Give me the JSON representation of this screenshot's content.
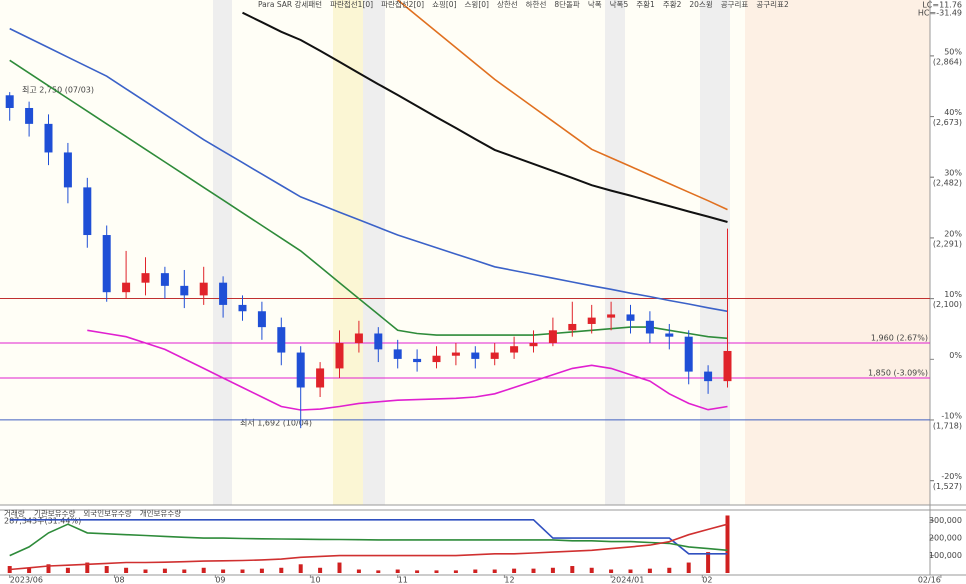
{
  "chart_data": [
    {
      "type": "candlestick",
      "legend": [
        "Para SAR 강세패턴",
        "파란접선1[0]",
        "파란접선2[0]",
        "쇼핑[0]",
        "스윙[0]",
        "상한선",
        "하한선",
        "8단돌파",
        "낙폭",
        "낙폭5",
        "주황1",
        "주황2",
        "20스윙",
        "공구리표",
        "공구리표2"
      ],
      "annotations": {
        "high": "최고 2,750 (07/03)",
        "low": "최저 1,692 (10/04)",
        "lc": "LC=11.76",
        "hc": "HC=-31.49"
      },
      "categories": [
        null,
        null,
        null,
        null,
        null,
        null,
        null,
        null,
        null,
        null,
        null,
        null,
        null,
        null,
        null,
        null,
        null,
        null,
        null,
        null,
        null,
        null,
        null,
        null,
        null,
        null,
        null,
        null,
        null,
        null,
        null,
        null,
        null,
        null,
        null,
        null,
        null,
        null
      ],
      "open": [
        2740,
        2700,
        2650,
        2560,
        2450,
        2300,
        2120,
        2150,
        2180,
        2140,
        2110,
        2150,
        2080,
        2060,
        2010,
        1930,
        1820,
        1880,
        1960,
        1990,
        1940,
        1910,
        1900,
        1920,
        1930,
        1910,
        1930,
        1950,
        1960,
        2000,
        2020,
        2040,
        2050,
        2030,
        1990,
        1980,
        1870,
        1840
      ],
      "high": [
        2750,
        2720,
        2680,
        2590,
        2480,
        2330,
        2250,
        2230,
        2200,
        2190,
        2200,
        2170,
        2110,
        2090,
        2040,
        1950,
        1900,
        2000,
        2030,
        2010,
        1970,
        1940,
        1950,
        1960,
        1950,
        1960,
        1980,
        2000,
        2040,
        2090,
        2080,
        2090,
        2080,
        2060,
        2020,
        2000,
        1890,
        2320
      ],
      "low": [
        2660,
        2610,
        2520,
        2400,
        2260,
        2090,
        2100,
        2110,
        2100,
        2070,
        2080,
        2040,
        2030,
        1970,
        1890,
        1692,
        1790,
        1850,
        1930,
        1900,
        1880,
        1870,
        1880,
        1890,
        1880,
        1890,
        1910,
        1930,
        1950,
        1980,
        1990,
        2000,
        1990,
        1960,
        1940,
        1830,
        1800,
        1820
      ],
      "close": [
        2700,
        2650,
        2560,
        2450,
        2300,
        2120,
        2150,
        2180,
        2140,
        2110,
        2150,
        2080,
        2060,
        2010,
        1930,
        1820,
        1880,
        1960,
        1990,
        1940,
        1910,
        1900,
        1920,
        1930,
        1910,
        1930,
        1950,
        1960,
        2000,
        2020,
        2040,
        2050,
        2030,
        1990,
        1980,
        1870,
        1840,
        1935
      ],
      "up_color": "#e0232a",
      "down_color": "#1f4fd6",
      "series": [
        {
          "color": "#111111",
          "values": [
            null,
            null,
            null,
            null,
            null,
            null,
            null,
            null,
            null,
            null,
            null,
            null,
            3000,
            2970,
            2940,
            2914,
            2880,
            2845,
            2810,
            2775,
            2741,
            2706,
            2671,
            2637,
            2602,
            2568,
            2546,
            2524,
            2502,
            2480,
            2457,
            2440,
            2424,
            2407,
            2391,
            2374,
            2358,
            2341
          ]
        },
        {
          "color": "#3b62c8",
          "values": [
            2950,
            2920,
            2890,
            2860,
            2830,
            2800,
            2760,
            2720,
            2680,
            2640,
            2600,
            2564,
            2528,
            2492,
            2456,
            2420,
            2396,
            2372,
            2348,
            2324,
            2300,
            2280,
            2260,
            2240,
            2220,
            2200,
            2188,
            2176,
            2164,
            2152,
            2140,
            2129,
            2117,
            2106,
            2094,
            2083,
            2071,
            2060
          ]
        },
        {
          "color": "#2e8b3a",
          "values": [
            2850,
            2810,
            2770,
            2730,
            2690,
            2650,
            2610,
            2570,
            2530,
            2490,
            2450,
            2410,
            2370,
            2330,
            2290,
            2250,
            2200,
            2150,
            2100,
            2050,
            2000,
            1990,
            1985,
            1985,
            1985,
            1985,
            1985,
            1985,
            1990,
            1995,
            2000,
            2005,
            2010,
            2010,
            2000,
            1990,
            1980,
            1975
          ]
        },
        {
          "color": "#e07020",
          "values": [
            null,
            null,
            null,
            null,
            null,
            null,
            null,
            null,
            null,
            null,
            null,
            null,
            null,
            null,
            null,
            null,
            null,
            null,
            null,
            null,
            3040,
            2990,
            2940,
            2890,
            2840,
            2790,
            2746,
            2702,
            2658,
            2614,
            2570,
            2543,
            2516,
            2489,
            2462,
            2435,
            2408,
            2380
          ]
        },
        {
          "color": "#e020d0",
          "values": [
            null,
            null,
            null,
            null,
            2000,
            1990,
            1980,
            1960,
            1940,
            1910,
            1880,
            1850,
            1820,
            1790,
            1760,
            1749,
            1752,
            1760,
            1770,
            1775,
            1780,
            1782,
            1784,
            1786,
            1790,
            1800,
            1820,
            1840,
            1860,
            1880,
            1890,
            1880,
            1860,
            1840,
            1800,
            1770,
            1750,
            1760
          ]
        }
      ],
      "hlines": [
        {
          "value": 1960,
          "label": "1,960 (2.67%)",
          "color": "#e020d0"
        },
        {
          "value": 1850,
          "label": "1,850 (-3.09%)",
          "color": "#e020d0"
        },
        {
          "value": 2100,
          "color": "#c03030"
        },
        {
          "value": 1718,
          "color": "#4060c0"
        }
      ],
      "ylim": [
        1450,
        3040
      ],
      "yticks": [
        {
          "value": 2864,
          "label": "(2,864)"
        },
        {
          "value": 2673,
          "label": "(2,673)"
        },
        {
          "value": 2482,
          "label": "(2,482)"
        },
        {
          "value": 2291,
          "label": "(2,291)"
        },
        {
          "value": 2100,
          "label": "(2,100)"
        },
        {
          "value": 1718,
          "label": "(1,718)"
        },
        {
          "value": 1527,
          "label": "(1,527)"
        }
      ],
      "y2lim": [
        -24.0,
        59.2
      ],
      "y2ticks": [
        {
          "value": 50,
          "label": "50%"
        },
        {
          "value": 40,
          "label": "40%"
        },
        {
          "value": 30,
          "label": "30%"
        },
        {
          "value": 20,
          "label": "20%"
        },
        {
          "value": 10,
          "label": "10%"
        },
        {
          "value": 0,
          "label": "0%"
        },
        {
          "value": -10,
          "label": "-10%"
        },
        {
          "value": -20,
          "label": "-20%"
        }
      ]
    },
    {
      "type": "bar",
      "name": "거래량",
      "annotation": "287,343주(31.44%)",
      "categories": [
        null,
        null,
        null,
        null,
        null,
        null,
        null,
        null,
        null,
        null,
        null,
        null,
        null,
        null,
        null,
        null,
        null,
        null,
        null,
        null,
        null,
        null,
        null,
        null,
        null,
        null,
        null,
        null,
        null,
        null,
        null,
        null,
        null,
        null,
        null,
        null,
        null,
        null
      ],
      "values": [
        40000,
        30000,
        50000,
        30000,
        60000,
        40000,
        30000,
        20000,
        25000,
        20000,
        30000,
        20000,
        20000,
        25000,
        30000,
        50000,
        30000,
        60000,
        20000,
        15000,
        20000,
        15000,
        15000,
        15000,
        20000,
        20000,
        25000,
        25000,
        30000,
        40000,
        30000,
        20000,
        20000,
        25000,
        30000,
        60000,
        120000,
        330000
      ],
      "color": "#d02020",
      "series": [
        {
          "name": "기관보유수량",
          "color": "#3050c0",
          "values": [
            305000,
            305000,
            305000,
            305000,
            305000,
            305000,
            305000,
            305000,
            305000,
            305000,
            305000,
            305000,
            305000,
            305000,
            305000,
            305000,
            305000,
            305000,
            305000,
            305000,
            305000,
            305000,
            305000,
            305000,
            305000,
            305000,
            305000,
            305000,
            200000,
            200000,
            200000,
            200000,
            200000,
            200000,
            200000,
            110000,
            110000,
            110000
          ]
        },
        {
          "name": "외국인보유수량",
          "color": "#2e8b3a",
          "values": [
            100000,
            150000,
            230000,
            280000,
            230000,
            225000,
            220000,
            215000,
            210000,
            205000,
            200000,
            200000,
            198000,
            196000,
            195000,
            194000,
            193000,
            192000,
            191000,
            190000,
            190000,
            190000,
            190000,
            190000,
            190000,
            190000,
            190000,
            190000,
            190000,
            185000,
            185000,
            180000,
            180000,
            175000,
            170000,
            150000,
            140000,
            130000
          ]
        },
        {
          "name": "개인보유수량",
          "color": "#d03030",
          "values": [
            20000,
            30000,
            40000,
            45000,
            50000,
            55000,
            60000,
            60000,
            62000,
            65000,
            68000,
            70000,
            72000,
            75000,
            80000,
            90000,
            95000,
            100000,
            100000,
            100000,
            100000,
            100000,
            100000,
            100000,
            105000,
            110000,
            110000,
            115000,
            120000,
            125000,
            130000,
            140000,
            150000,
            160000,
            180000,
            220000,
            250000,
            280000
          ]
        }
      ],
      "ylim": [
        0,
        350000
      ],
      "yticks": [
        {
          "value": 100000,
          "label": "100,000"
        },
        {
          "value": 200000,
          "label": "200,000"
        },
        {
          "value": 300000,
          "label": "300,000"
        }
      ],
      "xticks": [
        {
          "value": 0,
          "label": "2023/06"
        },
        {
          "value": 5.4,
          "label": "08"
        },
        {
          "value": 10.6,
          "label": "09"
        },
        {
          "value": 15.5,
          "label": "10"
        },
        {
          "value": 20,
          "label": "11"
        },
        {
          "value": 25.5,
          "label": "12"
        },
        {
          "value": 31,
          "label": "2024/01"
        },
        {
          "value": 35.7,
          "label": "02"
        },
        {
          "value": 48,
          "label": "02/16"
        }
      ]
    }
  ]
}
